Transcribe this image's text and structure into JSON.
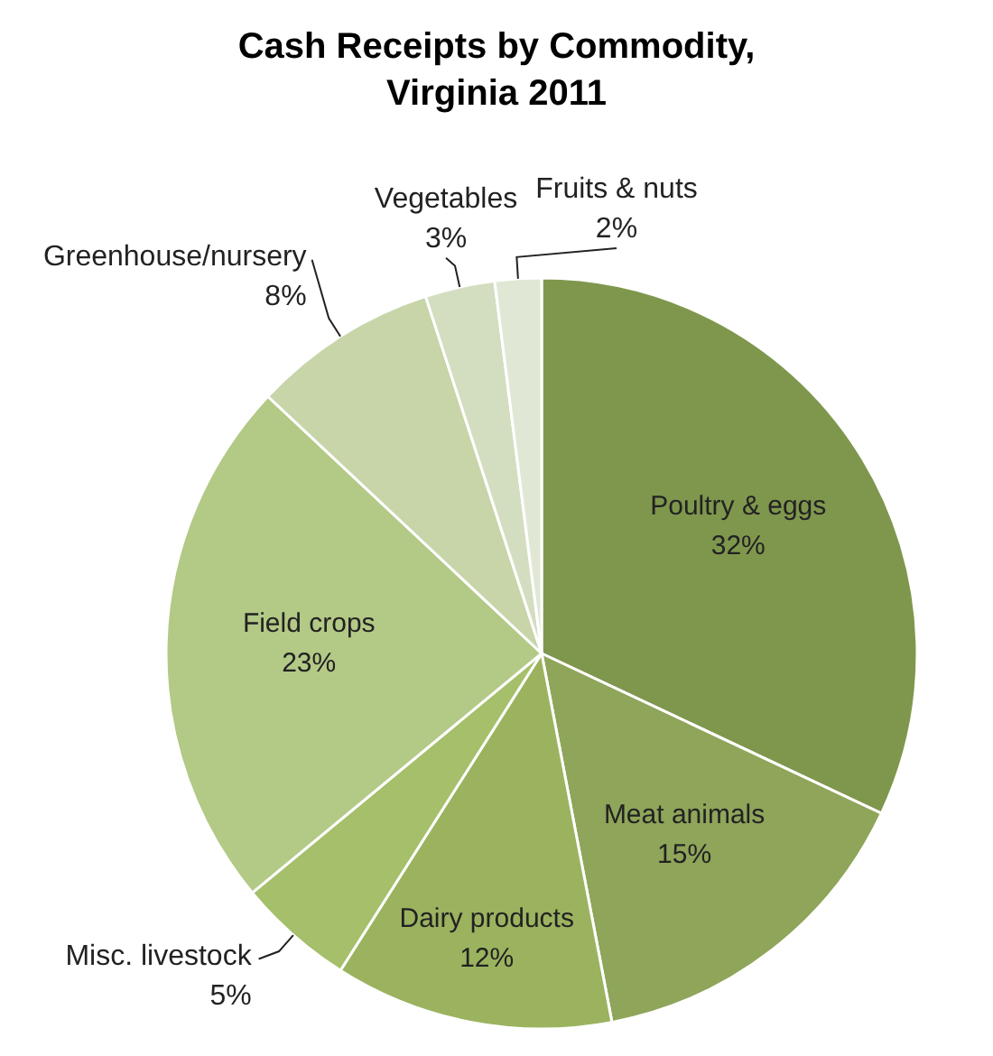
{
  "chart_data": {
    "type": "pie",
    "title": "Cash Receipts by Commodity, Virginia 2011",
    "categories": [
      "Poultry & eggs",
      "Meat animals",
      "Dairy products",
      "Misc. livestock",
      "Field crops",
      "Greenhouse/nursery",
      "Vegetables",
      "Fruits & nuts"
    ],
    "values": [
      32,
      15,
      12,
      5,
      23,
      8,
      3,
      2
    ],
    "colors": [
      "#7f974d",
      "#8ea55a",
      "#9bb35f",
      "#a5bf6a",
      "#b3c986",
      "#c7d5a9",
      "#d3dec0",
      "#e0e8d5"
    ],
    "value_labels": [
      "32%",
      "15%",
      "12%",
      "5%",
      "23%",
      "8%",
      "3%",
      "2%"
    ]
  }
}
